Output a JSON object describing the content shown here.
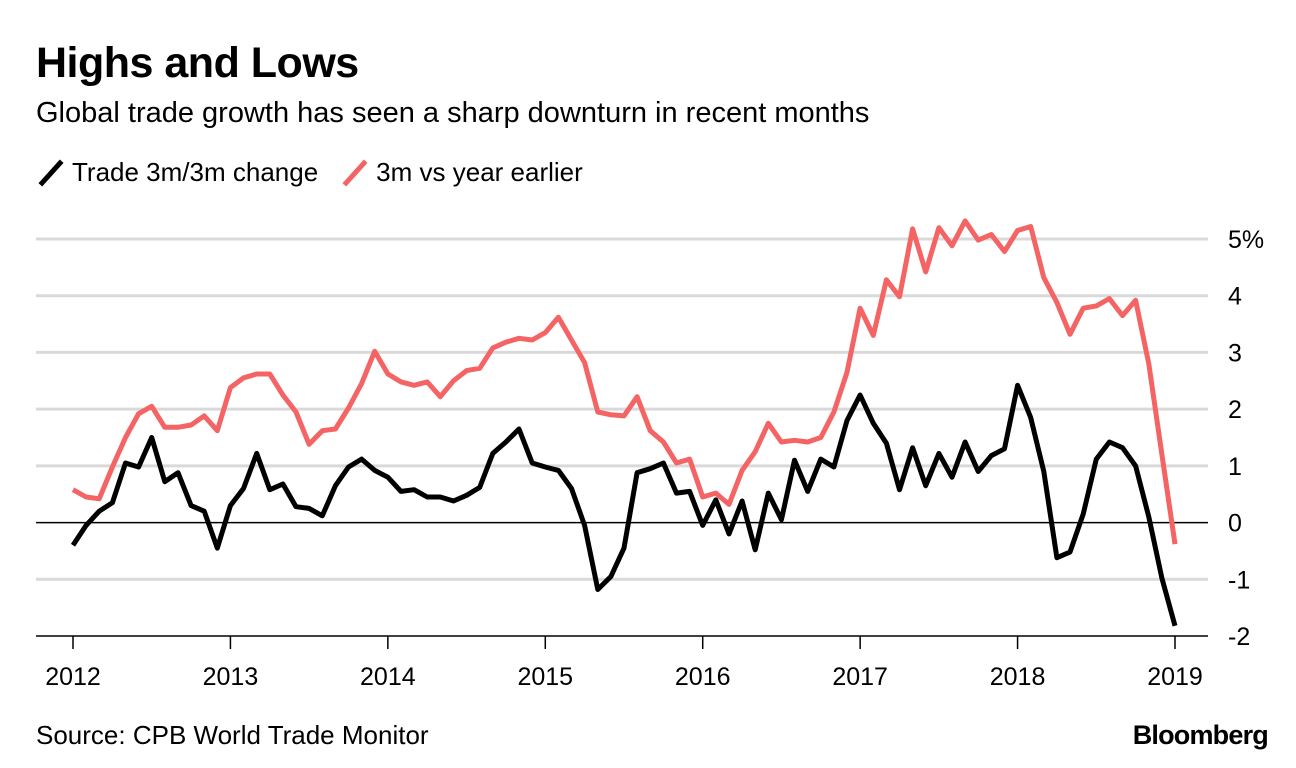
{
  "title": "Highs and Lows",
  "subtitle": "Global trade growth has seen a sharp downturn in recent months",
  "source": "Source: CPB World Trade Monitor",
  "logo_text": "Bloomberg",
  "colors": {
    "trade": "#000000",
    "yoy": "#f46464",
    "grid": "#d9d9d9",
    "zero": "#000000"
  },
  "chart_data": {
    "type": "line",
    "title": "Highs and Lows",
    "subtitle": "Global trade growth has seen a sharp downturn in recent months",
    "xlabel": "",
    "ylabel": "",
    "xlim": [
      2012,
      2019
    ],
    "ylim": [
      -2,
      5
    ],
    "x_ticks": [
      "2012",
      "2013",
      "2014",
      "2015",
      "2016",
      "2017",
      "2018",
      "2019"
    ],
    "y_ticks": [
      "-2",
      "-1",
      "0",
      "1",
      "2",
      "3",
      "4",
      "5%"
    ],
    "y_tick_values": [
      -2,
      -1,
      0,
      1,
      2,
      3,
      4,
      5
    ],
    "legend_position": "top-left",
    "grid": true,
    "x_start": 2012.0,
    "x_step_months": 1,
    "series": [
      {
        "name": "Trade 3m/3m change",
        "color": "#000000",
        "values": [
          -0.4,
          -0.05,
          0.2,
          0.35,
          1.05,
          0.98,
          1.5,
          0.72,
          0.88,
          0.3,
          0.2,
          -0.45,
          0.3,
          0.6,
          1.22,
          0.58,
          0.68,
          0.28,
          0.25,
          0.12,
          0.65,
          0.98,
          1.12,
          0.92,
          0.8,
          0.55,
          0.58,
          0.45,
          0.45,
          0.38,
          0.48,
          0.62,
          1.22,
          1.42,
          1.65,
          1.05,
          0.98,
          0.92,
          0.6,
          -0.05,
          -1.18,
          -0.95,
          -0.45,
          0.88,
          0.95,
          1.05,
          0.52,
          0.55,
          -0.05,
          0.4,
          -0.2,
          0.38,
          -0.48,
          0.52,
          0.05,
          1.1,
          0.55,
          1.12,
          0.98,
          1.8,
          2.25,
          1.75,
          1.4,
          0.58,
          1.32,
          0.65,
          1.22,
          0.8,
          1.42,
          0.9,
          1.18,
          1.3,
          2.42,
          1.85,
          0.9,
          -0.62,
          -0.52,
          0.15,
          1.12,
          1.42,
          1.32,
          1.0,
          0.1,
          -0.98,
          -1.82
        ]
      },
      {
        "name": "3m vs year earlier",
        "color": "#f46464",
        "values": [
          0.58,
          0.45,
          0.42,
          0.98,
          1.5,
          1.92,
          2.05,
          1.68,
          1.68,
          1.72,
          1.88,
          1.62,
          2.38,
          2.55,
          2.62,
          2.62,
          2.25,
          1.95,
          1.38,
          1.62,
          1.65,
          2.02,
          2.45,
          3.02,
          2.62,
          2.48,
          2.42,
          2.48,
          2.22,
          2.5,
          2.68,
          2.72,
          3.08,
          3.18,
          3.25,
          3.22,
          3.35,
          3.62,
          3.22,
          2.82,
          1.95,
          1.9,
          1.88,
          2.22,
          1.62,
          1.42,
          1.05,
          1.12,
          0.45,
          0.52,
          0.32,
          0.92,
          1.25,
          1.75,
          1.42,
          1.45,
          1.42,
          1.5,
          1.95,
          2.65,
          3.78,
          3.3,
          4.28,
          3.98,
          5.18,
          4.42,
          5.2,
          4.88,
          5.32,
          4.98,
          5.08,
          4.78,
          5.15,
          5.22,
          4.32,
          3.88,
          3.32,
          3.78,
          3.82,
          3.95,
          3.65,
          3.92,
          2.8,
          1.2,
          -0.38
        ]
      }
    ]
  }
}
